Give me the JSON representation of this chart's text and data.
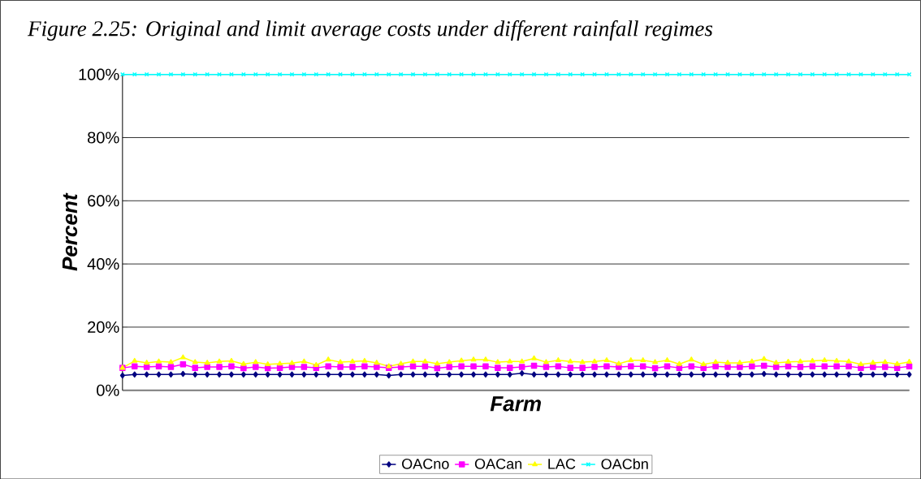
{
  "chart_data": {
    "type": "line",
    "title": "Figure 2.25: Original and limit average costs under different rainfall regimes",
    "xlabel": "Farm",
    "ylabel": "Percent",
    "categories": [
      null,
      null,
      null,
      null,
      null,
      null,
      null,
      null,
      null,
      null,
      null,
      null,
      null,
      null,
      null,
      null,
      null,
      null,
      null,
      null,
      null,
      null,
      null,
      null,
      null,
      null,
      null,
      null,
      null,
      null,
      null,
      null,
      null,
      null,
      null,
      null,
      null,
      null,
      null,
      null,
      null,
      null,
      null,
      null,
      null,
      null,
      null,
      null,
      null,
      null,
      null,
      null,
      null,
      null,
      null,
      null,
      null,
      null,
      null,
      null,
      null,
      null,
      null,
      null,
      null,
      null
    ],
    "ylim": [
      0,
      100
    ],
    "yticks": [
      {
        "value": 0,
        "label": "0%"
      },
      {
        "value": 20,
        "label": "20%"
      },
      {
        "value": 40,
        "label": "40%"
      },
      {
        "value": 60,
        "label": "60%"
      },
      {
        "value": 80,
        "label": "80%"
      },
      {
        "value": 100,
        "label": "100%"
      }
    ],
    "grid": "y",
    "legend": "bottom",
    "series": [
      {
        "name": "OACno",
        "color": "#000080",
        "marker": "diamond",
        "values": [
          4.7,
          5.0,
          5.0,
          5.0,
          5.0,
          5.2,
          5.0,
          5.0,
          5.0,
          5.0,
          5.0,
          5.0,
          5.0,
          5.0,
          5.0,
          5.0,
          5.0,
          5.0,
          5.0,
          5.0,
          5.0,
          5.0,
          4.7,
          5.0,
          5.0,
          5.0,
          5.0,
          5.0,
          5.0,
          5.0,
          5.0,
          5.0,
          5.0,
          5.4,
          5.0,
          5.0,
          5.0,
          5.0,
          5.0,
          5.0,
          5.0,
          5.0,
          5.0,
          5.0,
          5.0,
          5.0,
          5.0,
          5.0,
          5.0,
          5.0,
          5.0,
          5.0,
          5.0,
          5.2,
          5.0,
          5.0,
          5.0,
          5.0,
          5.0,
          5.0,
          5.0,
          5.0,
          5.0,
          5.0,
          5.0,
          5.0
        ]
      },
      {
        "name": "OACan",
        "color": "#ff00ff",
        "marker": "square",
        "values": [
          7.1,
          7.6,
          7.4,
          7.6,
          7.4,
          8.2,
          7.1,
          7.4,
          7.4,
          7.6,
          7.0,
          7.4,
          7.0,
          7.1,
          7.4,
          7.4,
          7.1,
          7.6,
          7.4,
          7.4,
          7.6,
          7.4,
          7.1,
          7.4,
          7.6,
          7.6,
          7.0,
          7.4,
          7.6,
          7.6,
          7.6,
          7.1,
          7.1,
          7.4,
          7.8,
          7.4,
          7.6,
          7.1,
          7.1,
          7.4,
          7.6,
          7.4,
          7.6,
          7.6,
          7.0,
          7.6,
          7.1,
          7.6,
          7.1,
          7.6,
          7.4,
          7.4,
          7.6,
          7.8,
          7.4,
          7.6,
          7.4,
          7.6,
          7.6,
          7.6,
          7.6,
          7.1,
          7.4,
          7.4,
          7.1,
          7.6
        ]
      },
      {
        "name": "LAC",
        "color": "#ffff00",
        "marker": "triangle",
        "values": [
          7.1,
          9.3,
          8.7,
          9.1,
          8.9,
          10.4,
          8.9,
          8.7,
          9.1,
          9.3,
          8.3,
          8.9,
          8.2,
          8.4,
          8.6,
          9.1,
          8.0,
          9.7,
          8.9,
          9.1,
          9.3,
          8.7,
          7.6,
          8.4,
          9.1,
          9.1,
          8.4,
          8.9,
          9.4,
          9.7,
          9.7,
          8.9,
          9.1,
          9.1,
          10.1,
          8.9,
          9.5,
          9.1,
          8.9,
          9.1,
          9.5,
          8.4,
          9.5,
          9.5,
          8.9,
          9.5,
          8.3,
          9.7,
          8.2,
          8.9,
          8.7,
          8.7,
          9.1,
          9.9,
          8.7,
          9.0,
          9.1,
          9.3,
          9.5,
          9.3,
          9.1,
          8.2,
          8.7,
          8.9,
          8.3,
          9.0
        ]
      },
      {
        "name": "OACbn",
        "color": "#00ffff",
        "marker": "cross",
        "values": [
          100,
          100,
          100,
          100,
          100,
          100,
          100,
          100,
          100,
          100,
          100,
          100,
          100,
          100,
          100,
          100,
          100,
          100,
          100,
          100,
          100,
          100,
          100,
          100,
          100,
          100,
          100,
          100,
          100,
          100,
          100,
          100,
          100,
          100,
          100,
          100,
          100,
          100,
          100,
          100,
          100,
          100,
          100,
          100,
          100,
          100,
          100,
          100,
          100,
          100,
          100,
          100,
          100,
          100,
          100,
          100,
          100,
          100,
          100,
          100,
          100,
          100,
          100,
          100,
          100,
          100
        ]
      }
    ]
  }
}
